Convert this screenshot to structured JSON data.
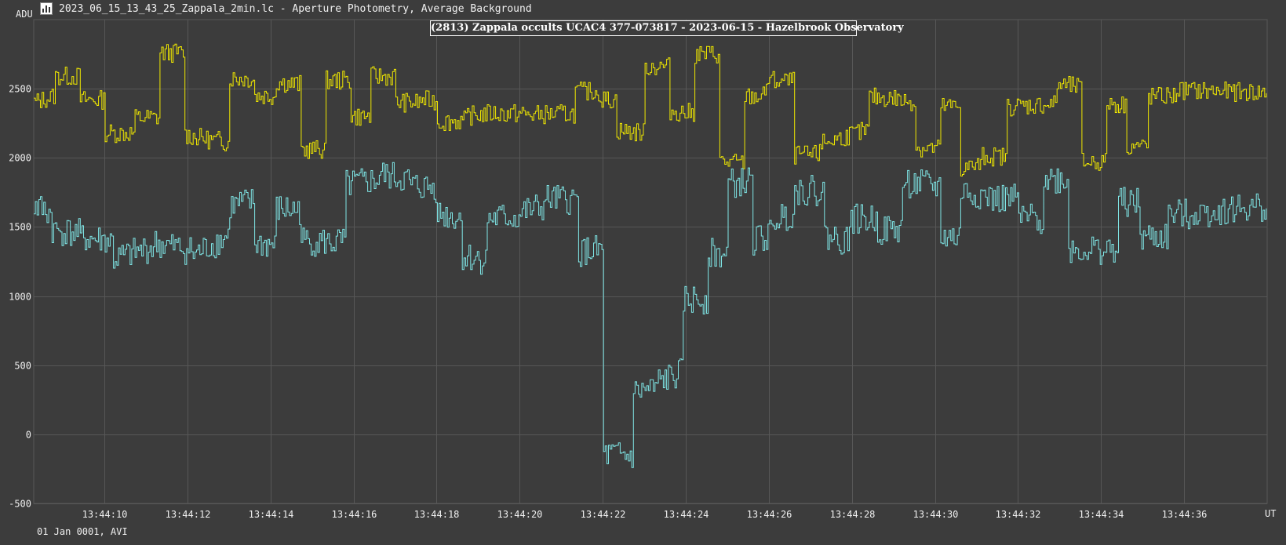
{
  "window": {
    "title": "2023_06_15_13_43_25_Zappala_2min.lc - Aperture Photometry, Average Background"
  },
  "axis_units": {
    "y": "ADU",
    "x": "UT"
  },
  "footer": {
    "date_label": "01 Jan 0001, AVI"
  },
  "colors": {
    "background": "#3c3c3c",
    "grid": "#575757",
    "comparison_series": "#f0e800",
    "target_series": "#7fe6e6"
  },
  "chart_data": {
    "type": "line",
    "title": "(2813) Zappala occults UCAC4 377-073817 - 2023-06-15 - Hazelbrook Observatory",
    "xlabel": "UT",
    "ylabel": "ADU",
    "x_range_seconds": [
      8.3,
      38.0
    ],
    "ylim": [
      -500,
      3000
    ],
    "grid": true,
    "x_ticks": [
      "13:44:10",
      "13:44:12",
      "13:44:14",
      "13:44:16",
      "13:44:18",
      "13:44:20",
      "13:44:22",
      "13:44:24",
      "13:44:26",
      "13:44:28",
      "13:44:30",
      "13:44:32",
      "13:44:34",
      "13:44:36"
    ],
    "x_tick_seconds": [
      10,
      12,
      14,
      16,
      18,
      20,
      22,
      24,
      26,
      28,
      30,
      32,
      34,
      36
    ],
    "y_ticks": [
      -500,
      0,
      500,
      1000,
      1500,
      2000,
      2500
    ],
    "x_unit_note": "seconds after 13:44:00 UT",
    "series": [
      {
        "color": "#f0e800",
        "noise": 70,
        "levels": [
          [
            8.3,
            2400
          ],
          [
            8.8,
            2450
          ],
          [
            8.8,
            2590
          ],
          [
            9.4,
            2590
          ],
          [
            9.4,
            2420
          ],
          [
            10.0,
            2420
          ],
          [
            10.0,
            2180
          ],
          [
            10.7,
            2180
          ],
          [
            10.7,
            2290
          ],
          [
            11.3,
            2290
          ],
          [
            11.3,
            2760
          ],
          [
            11.9,
            2760
          ],
          [
            11.9,
            2170
          ],
          [
            12.7,
            2120
          ],
          [
            12.7,
            2130
          ],
          [
            13.0,
            2110
          ],
          [
            13.0,
            2580
          ],
          [
            13.6,
            2570
          ],
          [
            13.6,
            2450
          ],
          [
            14.1,
            2450
          ],
          [
            14.1,
            2550
          ],
          [
            14.7,
            2530
          ],
          [
            14.7,
            2060
          ],
          [
            15.3,
            2060
          ],
          [
            15.3,
            2560
          ],
          [
            15.9,
            2560
          ],
          [
            15.9,
            2300
          ],
          [
            16.4,
            2300
          ],
          [
            16.4,
            2590
          ],
          [
            17.0,
            2590
          ],
          [
            17.0,
            2400
          ],
          [
            17.6,
            2400
          ],
          [
            17.6,
            2420
          ],
          [
            18.0,
            2410
          ],
          [
            18.0,
            2260
          ],
          [
            18.7,
            2270
          ],
          [
            18.7,
            2300
          ],
          [
            19.2,
            2320
          ],
          [
            19.2,
            2320
          ],
          [
            20.1,
            2320
          ],
          [
            20.1,
            2310
          ],
          [
            21.3,
            2320
          ],
          [
            21.3,
            2480
          ],
          [
            21.9,
            2480
          ],
          [
            21.9,
            2420
          ],
          [
            22.3,
            2420
          ],
          [
            22.3,
            2200
          ],
          [
            23.0,
            2180
          ],
          [
            23.0,
            2660
          ],
          [
            23.6,
            2660
          ],
          [
            23.6,
            2340
          ],
          [
            24.2,
            2320
          ],
          [
            24.2,
            2750
          ],
          [
            24.8,
            2750
          ],
          [
            24.8,
            1970
          ],
          [
            25.4,
            1960
          ],
          [
            25.4,
            2440
          ],
          [
            25.9,
            2450
          ],
          [
            25.9,
            2560
          ],
          [
            26.6,
            2550
          ],
          [
            26.6,
            2020
          ],
          [
            27.2,
            2020
          ],
          [
            27.2,
            2100
          ],
          [
            28.0,
            2170
          ],
          [
            28.0,
            2170
          ],
          [
            28.4,
            2200
          ],
          [
            28.4,
            2440
          ],
          [
            29.1,
            2430
          ],
          [
            29.1,
            2410
          ],
          [
            29.5,
            2410
          ],
          [
            29.5,
            2070
          ],
          [
            30.1,
            2070
          ],
          [
            30.1,
            2370
          ],
          [
            30.6,
            2370
          ],
          [
            30.6,
            1920
          ],
          [
            31.1,
            1950
          ],
          [
            31.1,
            2010
          ],
          [
            31.7,
            2010
          ],
          [
            31.7,
            2370
          ],
          [
            32.9,
            2390
          ],
          [
            32.9,
            2530
          ],
          [
            33.5,
            2510
          ],
          [
            33.5,
            1970
          ],
          [
            34.1,
            1970
          ],
          [
            34.1,
            2400
          ],
          [
            34.6,
            2380
          ],
          [
            34.6,
            2090
          ],
          [
            35.1,
            2080
          ],
          [
            35.1,
            2440
          ],
          [
            35.8,
            2450
          ],
          [
            35.8,
            2490
          ],
          [
            38.0,
            2470
          ]
        ]
      },
      {
        "color": "#7fe6e6",
        "noise": 110,
        "levels": [
          [
            8.3,
            1650
          ],
          [
            8.7,
            1600
          ],
          [
            8.7,
            1480
          ],
          [
            9.4,
            1450
          ],
          [
            9.4,
            1420
          ],
          [
            10.2,
            1400
          ],
          [
            10.2,
            1260
          ],
          [
            11.2,
            1360
          ],
          [
            11.2,
            1380
          ],
          [
            12.1,
            1330
          ],
          [
            12.1,
            1290
          ],
          [
            13.0,
            1440
          ],
          [
            13.0,
            1650
          ],
          [
            13.6,
            1680
          ],
          [
            13.6,
            1380
          ],
          [
            14.1,
            1370
          ],
          [
            14.1,
            1630
          ],
          [
            14.7,
            1620
          ],
          [
            14.7,
            1400
          ],
          [
            15.3,
            1390
          ],
          [
            15.3,
            1380
          ],
          [
            15.8,
            1390
          ],
          [
            15.8,
            1800
          ],
          [
            16.6,
            1840
          ],
          [
            16.6,
            1880
          ],
          [
            17.3,
            1840
          ],
          [
            17.3,
            1800
          ],
          [
            18.0,
            1780
          ],
          [
            18.0,
            1600
          ],
          [
            18.6,
            1560
          ],
          [
            18.6,
            1290
          ],
          [
            19.2,
            1260
          ],
          [
            19.2,
            1560
          ],
          [
            20.0,
            1570
          ],
          [
            20.0,
            1600
          ],
          [
            20.6,
            1650
          ],
          [
            20.6,
            1700
          ],
          [
            21.4,
            1690
          ],
          [
            21.4,
            1320
          ],
          [
            22.0,
            1330
          ],
          [
            22.0,
            -150
          ],
          [
            22.7,
            -160
          ],
          [
            22.7,
            300
          ],
          [
            23.3,
            330
          ],
          [
            23.3,
            380
          ],
          [
            23.9,
            440
          ],
          [
            23.9,
            970
          ],
          [
            24.5,
            980
          ],
          [
            24.5,
            1310
          ],
          [
            25.0,
            1300
          ],
          [
            25.0,
            1810
          ],
          [
            25.6,
            1830
          ],
          [
            25.6,
            1400
          ],
          [
            26.1,
            1450
          ],
          [
            26.1,
            1560
          ],
          [
            26.6,
            1600
          ],
          [
            26.6,
            1770
          ],
          [
            27.3,
            1760
          ],
          [
            27.3,
            1440
          ],
          [
            27.9,
            1400
          ],
          [
            27.9,
            1560
          ],
          [
            28.6,
            1550
          ],
          [
            28.6,
            1480
          ],
          [
            29.2,
            1480
          ],
          [
            29.2,
            1820
          ],
          [
            30.1,
            1790
          ],
          [
            30.1,
            1440
          ],
          [
            30.6,
            1420
          ],
          [
            30.6,
            1760
          ],
          [
            31.3,
            1720
          ],
          [
            31.3,
            1700
          ],
          [
            32.0,
            1700
          ],
          [
            32.0,
            1560
          ],
          [
            32.6,
            1560
          ],
          [
            32.6,
            1850
          ],
          [
            33.2,
            1840
          ],
          [
            33.2,
            1340
          ],
          [
            34.4,
            1330
          ],
          [
            34.4,
            1680
          ],
          [
            34.9,
            1670
          ],
          [
            34.9,
            1420
          ],
          [
            35.6,
            1430
          ],
          [
            35.6,
            1580
          ],
          [
            38.0,
            1650
          ]
        ]
      }
    ]
  }
}
